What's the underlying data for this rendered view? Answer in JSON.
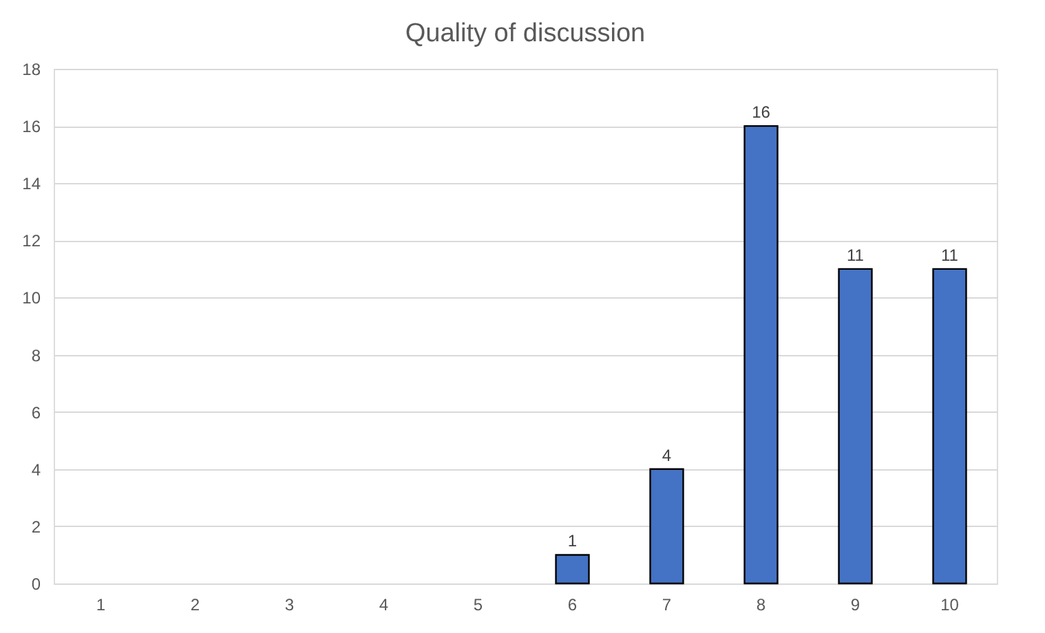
{
  "chart_data": {
    "type": "bar",
    "title": "Quality of discussion",
    "categories": [
      "1",
      "2",
      "3",
      "4",
      "5",
      "6",
      "7",
      "8",
      "9",
      "10"
    ],
    "values": [
      0,
      0,
      0,
      0,
      0,
      1,
      4,
      16,
      11,
      11
    ],
    "value_labels": [
      null,
      null,
      null,
      null,
      null,
      "1",
      "4",
      "16",
      "11",
      "11"
    ],
    "color": "#4472c4",
    "ylim": [
      0,
      18
    ],
    "yticks": [
      0,
      2,
      4,
      6,
      8,
      10,
      12,
      14,
      16,
      18
    ],
    "grid": "y"
  }
}
